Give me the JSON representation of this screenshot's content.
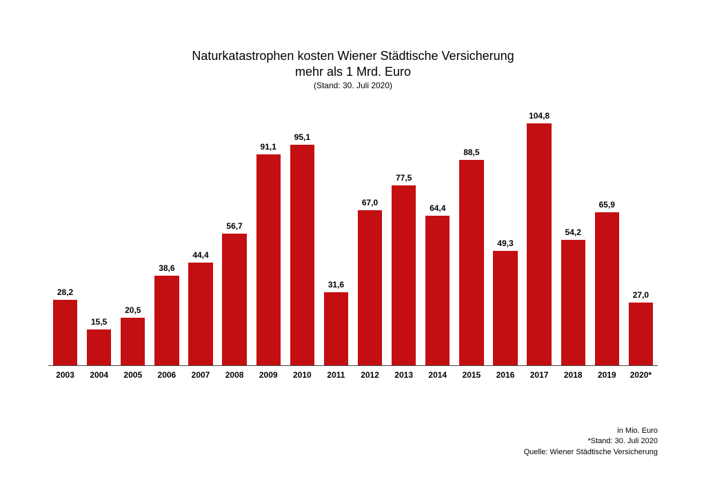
{
  "chart": {
    "type": "bar",
    "title_line1": "Naturkatastrophen kosten Wiener Städtische Versicherung",
    "title_line2": "mehr als 1 Mrd. Euro",
    "subtitle": "(Stand: 30. Juli 2020)",
    "title_fontsize": 18,
    "subtitle_fontsize": 12,
    "value_label_fontsize": 12,
    "x_tick_fontsize": 12,
    "footnote_fontsize": 11,
    "bar_color": "#c40f12",
    "background_color": "#ffffff",
    "axis_color": "#444444",
    "text_color": "#000000",
    "bar_width_ratio": 0.86,
    "ylim": [
      0,
      110
    ],
    "categories": [
      "2003",
      "2004",
      "2005",
      "2006",
      "2007",
      "2008",
      "2009",
      "2010",
      "2011",
      "2012",
      "2013",
      "2014",
      "2015",
      "2016",
      "2017",
      "2018",
      "2019",
      "2020*"
    ],
    "values": [
      28.2,
      15.5,
      20.5,
      38.6,
      44.4,
      56.7,
      91.1,
      95.1,
      31.6,
      67.0,
      77.5,
      64.4,
      88.5,
      49.3,
      104.8,
      54.2,
      65.9,
      27.0
    ],
    "value_labels": [
      "28,2",
      "15,5",
      "20,5",
      "38,6",
      "44,4",
      "56,7",
      "91,1",
      "95,1",
      "31,6",
      "67,0",
      "77,5",
      "64,4",
      "88,5",
      "49,3",
      "104,8",
      "54,2",
      "65,9",
      "27,0"
    ],
    "footnotes": {
      "unit": "in Mio. Euro",
      "asof": "*Stand: 30. Juli 2020",
      "source": "Quelle: Wiener Städtische Versicherung"
    }
  }
}
